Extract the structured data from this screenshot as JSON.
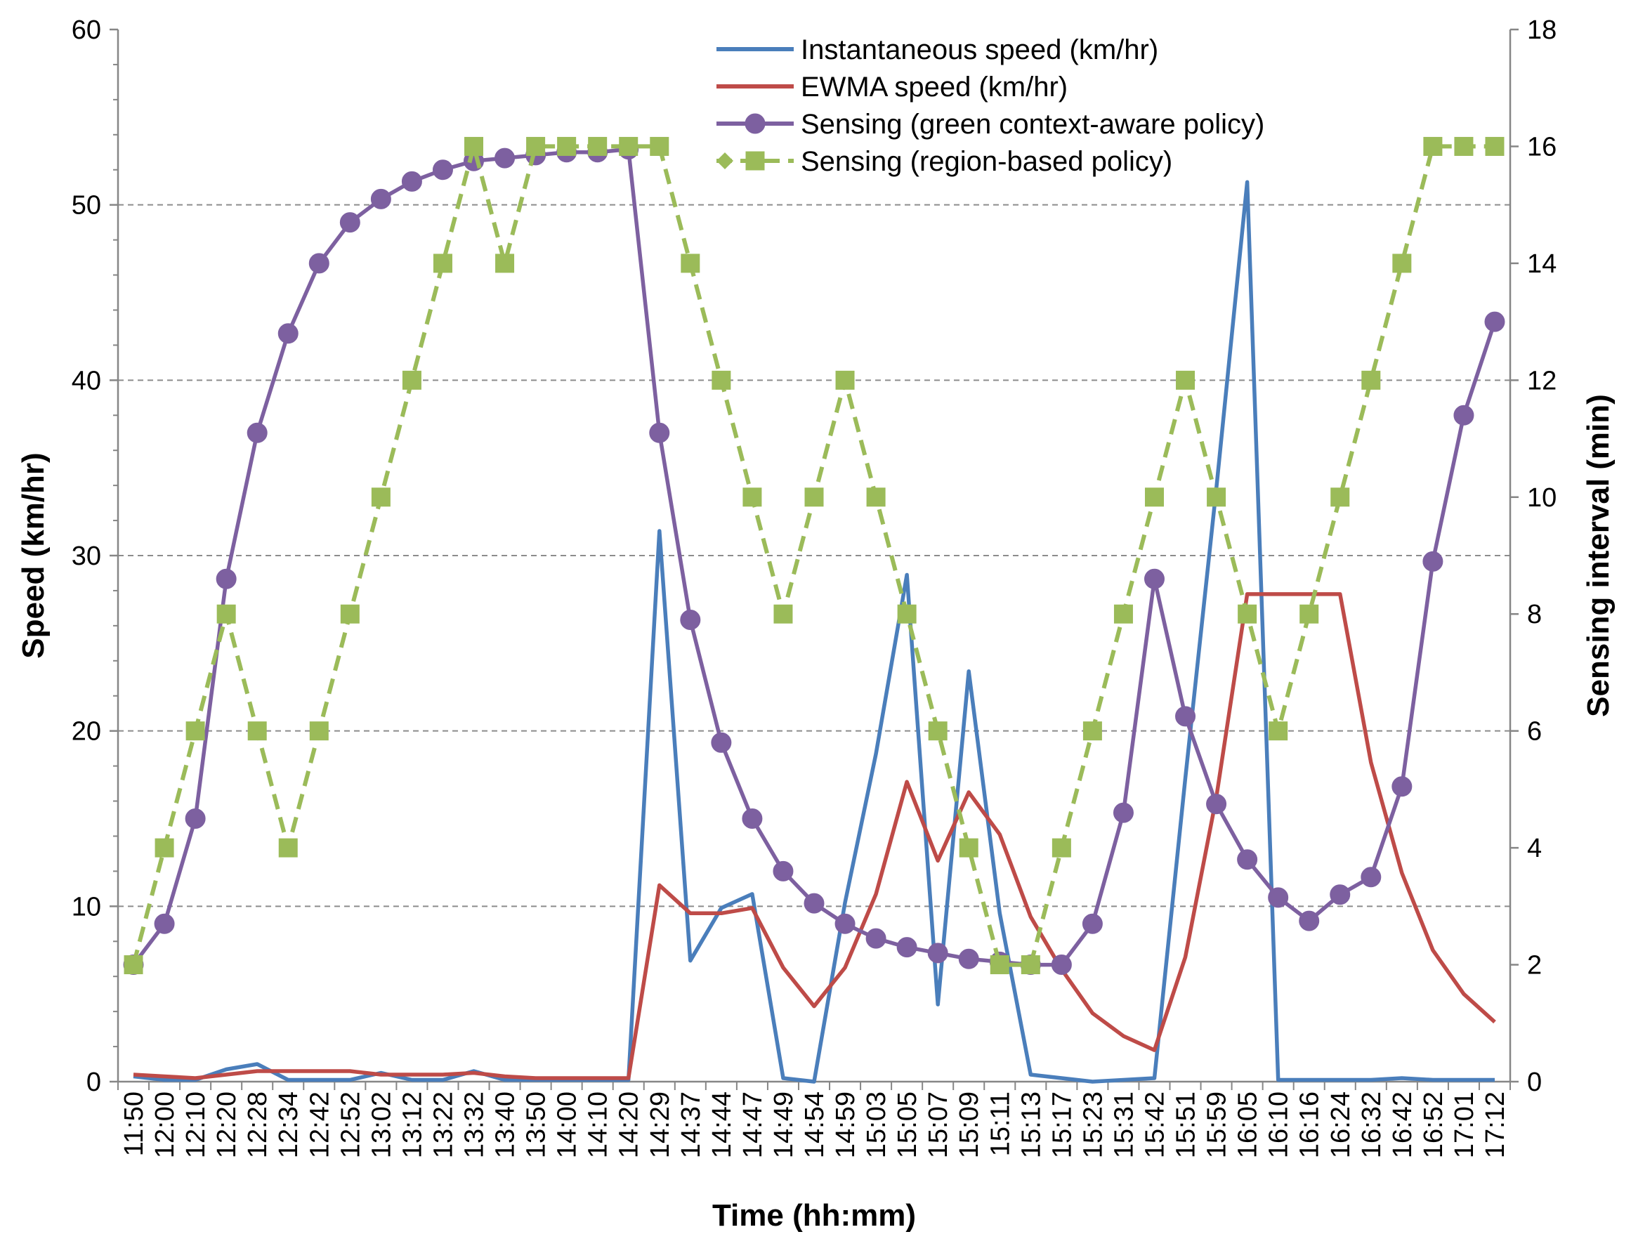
{
  "chart_data": {
    "type": "line",
    "title": "",
    "xlabel": "Time (hh:mm)",
    "ylabel": "Speed (km/hr)",
    "y2label": "Sensing interval (min)",
    "ylim": [
      0,
      60
    ],
    "y2lim": [
      0,
      18
    ],
    "yticks": [
      0,
      10,
      20,
      30,
      40,
      50,
      60
    ],
    "y2ticks": [
      0,
      2,
      4,
      6,
      8,
      10,
      12,
      14,
      16,
      18
    ],
    "grid": "horizontal-dashed",
    "legend_position": "top-center",
    "categories": [
      "11:50",
      "12:00",
      "12:10",
      "12:20",
      "12:28",
      "12:34",
      "12:42",
      "12:52",
      "13:02",
      "13:12",
      "13:22",
      "13:32",
      "13:40",
      "13:50",
      "14:00",
      "14:10",
      "14:20",
      "14:29",
      "14:37",
      "14:44",
      "14:47",
      "14:49",
      "14:54",
      "14:59",
      "15:03",
      "15:05",
      "15:07",
      "15:09",
      "15:11",
      "15:13",
      "15:17",
      "15:23",
      "15:31",
      "15:42",
      "15:51",
      "15:59",
      "16:05",
      "16:10",
      "16:16",
      "16:24",
      "16:32",
      "16:42",
      "16:52",
      "17:01",
      "17:12"
    ],
    "series": [
      {
        "name": "Instantaneous speed (km/hr)",
        "axis": "left",
        "color": "#4a7ebb",
        "marker": "none",
        "dash": "solid",
        "values": [
          0.3,
          0.1,
          0.1,
          0.7,
          1.0,
          0.1,
          0.1,
          0.1,
          0.5,
          0.1,
          0.1,
          0.6,
          0.1,
          0.1,
          0.1,
          0.1,
          0.1,
          31.4,
          6.9,
          9.9,
          10.7,
          0.2,
          0.0,
          10.2,
          18.7,
          28.9,
          4.4,
          23.4,
          9.6,
          0.4,
          0.2,
          0.0,
          0.1,
          0.2,
          17.3,
          33.8,
          51.3,
          0.1,
          0.1,
          0.1,
          0.1,
          0.2,
          0.1,
          0.1,
          0.1
        ]
      },
      {
        "name": "EWMA speed (km/hr)",
        "axis": "left",
        "color": "#be4b48",
        "marker": "none",
        "dash": "solid",
        "values": [
          0.4,
          0.3,
          0.2,
          0.4,
          0.6,
          0.6,
          0.6,
          0.6,
          0.4,
          0.4,
          0.4,
          0.5,
          0.3,
          0.2,
          0.2,
          0.2,
          0.2,
          11.2,
          9.6,
          9.6,
          9.9,
          6.5,
          4.3,
          6.5,
          10.7,
          17.1,
          12.6,
          16.5,
          14.1,
          9.4,
          6.4,
          3.9,
          2.6,
          1.8,
          7.1,
          16.2,
          27.8,
          27.8,
          27.8,
          27.8,
          18.2,
          11.9,
          7.5,
          5.0,
          3.4
        ]
      },
      {
        "name": "Sensing (green context-aware policy)",
        "axis": "right",
        "color": "#7d60a0",
        "marker": "circle",
        "dash": "solid",
        "values": [
          2.0,
          2.7,
          4.5,
          8.6,
          11.1,
          12.8,
          14.0,
          14.7,
          15.1,
          15.4,
          15.6,
          15.75,
          15.8,
          15.85,
          15.9,
          15.9,
          15.95,
          11.1,
          7.9,
          5.8,
          4.5,
          3.6,
          3.05,
          2.7,
          2.45,
          2.3,
          2.2,
          2.1,
          2.05,
          2.0,
          2.0,
          2.7,
          4.6,
          8.6,
          6.25,
          4.75,
          3.8,
          3.15,
          2.75,
          3.2,
          3.5,
          5.05,
          8.9,
          11.4,
          13.0
        ]
      },
      {
        "name": "Sensing (region-based policy)",
        "axis": "right",
        "color": "#9bbb59",
        "marker": "square",
        "dash": "dashed",
        "values": [
          2,
          4,
          6,
          8,
          6,
          4,
          6,
          8,
          10,
          12,
          14,
          16,
          14,
          16,
          16,
          16,
          16,
          16,
          14,
          12,
          10,
          8,
          10,
          12,
          10,
          8,
          6,
          4,
          2,
          2,
          4,
          6,
          8,
          10,
          12,
          10,
          8,
          6,
          8,
          10,
          12,
          14,
          16,
          16,
          16
        ]
      }
    ]
  }
}
